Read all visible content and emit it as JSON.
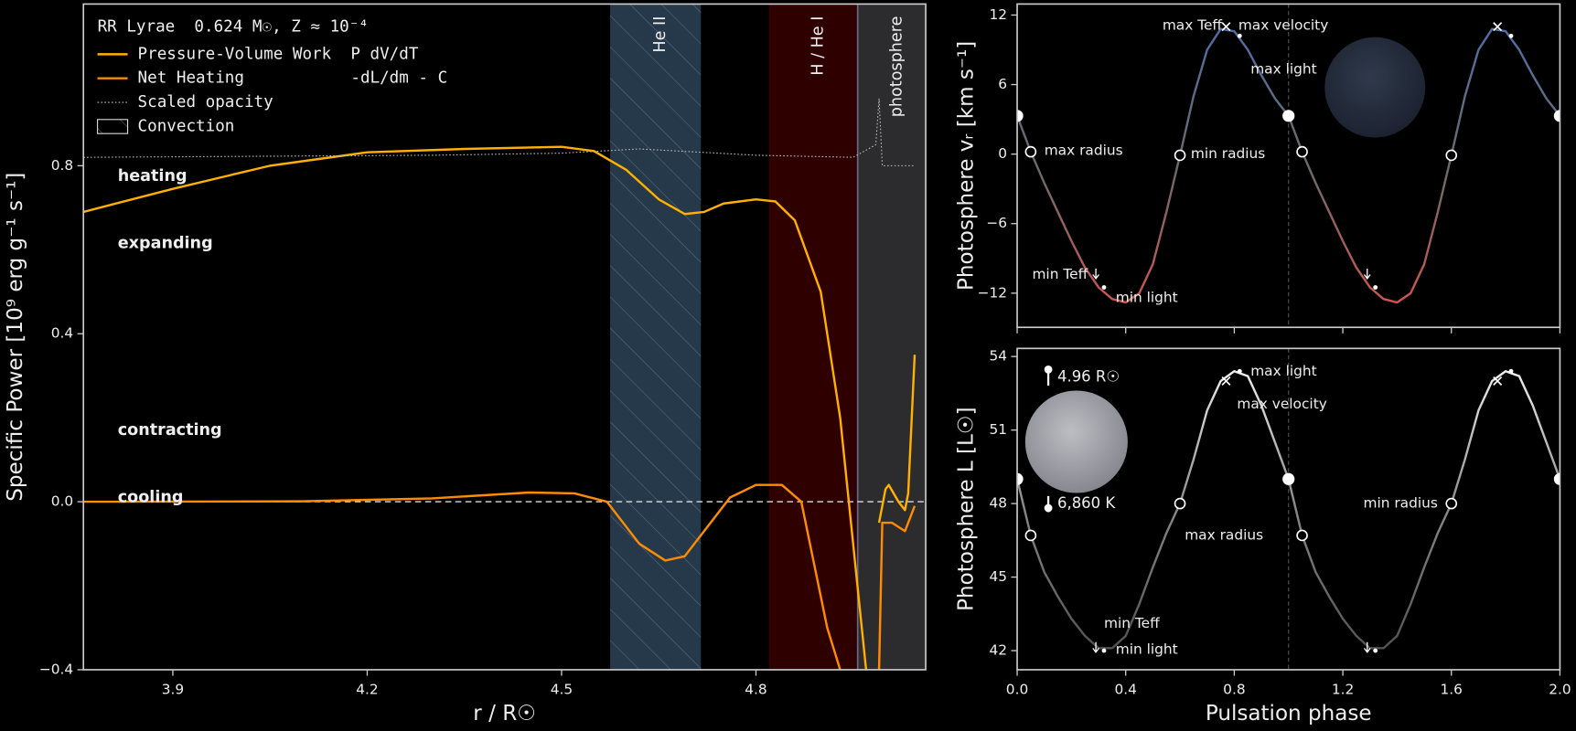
{
  "chart_data": [
    {
      "type": "line",
      "title": "RR Lyrae  0.624 M☉, Z ≈ 10⁻⁴",
      "xlabel": "r / R☉",
      "ylabel": "Specific Power [10⁹ erg g⁻¹ s⁻¹]",
      "xlim": [
        3.762,
        5.062
      ],
      "ylim": [
        -0.4,
        1.185
      ],
      "xticks": [
        3.9,
        4.2,
        4.5,
        4.8
      ],
      "yticks": [
        {
          "value": -0.4,
          "label": "−0.4"
        },
        {
          "value": 0,
          "label": "0.0"
        },
        0.4,
        0.8
      ],
      "hline": 0,
      "legend": "upper left",
      "convection_label": "Convection",
      "regions": [
        {
          "label": "He II",
          "xlim": [
            4.575,
            4.715
          ],
          "color": "#25394a",
          "hatch": true
        },
        {
          "label": "H / He I",
          "xlim": [
            4.82,
            4.957
          ],
          "color": "#2e0000"
        },
        {
          "label": "photosphere",
          "xlim": [
            4.957,
            5.062
          ],
          "color": "#2c2c2f",
          "border": "#6a6a88"
        }
      ],
      "series": [
        {
          "name": "Pressure-Volume Work  P dV/dT",
          "color": "#ffb000",
          "x": [
            3.762,
            3.9,
            4.05,
            4.2,
            4.35,
            4.5,
            4.55,
            4.6,
            4.65,
            4.69,
            4.72,
            4.75,
            4.8,
            4.83,
            4.86,
            4.9,
            4.93,
            4.95,
            4.97,
            4.985,
            4.99,
            5.0,
            5.005,
            5.02,
            5.03,
            5.035,
            5.045
          ],
          "values": [
            0.69,
            0.745,
            0.8,
            0.832,
            0.84,
            0.845,
            0.835,
            0.79,
            0.72,
            0.685,
            0.69,
            0.71,
            0.72,
            0.715,
            0.67,
            0.5,
            0.2,
            -0.1,
            -0.4,
            null,
            -0.05,
            0.03,
            0.04,
            0.0,
            -0.02,
            0.02,
            0.35
          ]
        },
        {
          "name": "Net Heating           -dL/dm - C",
          "color": "#ff8c00",
          "x": [
            3.762,
            4.1,
            4.3,
            4.45,
            4.52,
            4.57,
            4.62,
            4.66,
            4.69,
            4.72,
            4.76,
            4.8,
            4.84,
            4.87,
            4.89,
            4.91,
            4.93,
            4.96,
            4.99,
            4.995,
            5.0,
            5.01,
            5.03,
            5.045
          ],
          "values": [
            0,
            0.001,
            0.008,
            0.022,
            0.02,
            0.0,
            -0.1,
            -0.14,
            -0.13,
            -0.07,
            0.01,
            0.04,
            0.04,
            0.0,
            -0.15,
            -0.3,
            -0.4,
            null,
            -0.4,
            -0.05,
            -0.05,
            -0.05,
            -0.07,
            -0.01
          ]
        },
        {
          "name": "Scaled opacity",
          "color": "#bbbbbb",
          "style": "dotted",
          "x": [
            3.762,
            4.3,
            4.5,
            4.62,
            4.8,
            4.95,
            4.985,
            4.99,
            4.995,
            5.045
          ],
          "values": [
            0.82,
            0.825,
            0.83,
            0.84,
            0.825,
            0.82,
            0.85,
            0.96,
            0.8,
            0.8
          ]
        }
      ],
      "annotations": [
        {
          "text": "heating",
          "x": 3.815,
          "y": 0.775,
          "color": "#555555"
        },
        {
          "text": "expanding",
          "x": 3.815,
          "y": 0.615,
          "color": "#d62728"
        },
        {
          "text": "contracting",
          "x": 3.815,
          "y": 0.17,
          "color": "#555555"
        },
        {
          "text": "cooling",
          "x": 3.815,
          "y": 0.01,
          "color": "#9ecae1"
        }
      ]
    },
    {
      "type": "line",
      "ylabel": "Photosphere vᵣ [km s⁻¹]",
      "xlim": [
        0,
        2
      ],
      "ylim": [
        -14.95,
        12.95
      ],
      "xticks": [
        0,
        0.4,
        0.8,
        1.2,
        1.6,
        2
      ],
      "yticks": [
        {
          "value": -12,
          "label": "−12"
        },
        {
          "value": -6,
          "label": "−6"
        },
        0,
        6,
        12
      ],
      "vline": 1,
      "star_color": "#26303f",
      "series": [
        {
          "colors": [
            "#4c6eb0",
            "#6a6a6a",
            "#e0524a"
          ],
          "x": [
            0,
            0.05,
            0.1,
            0.15,
            0.2,
            0.25,
            0.3,
            0.35,
            0.4,
            0.45,
            0.5,
            0.55,
            0.6,
            0.65,
            0.7,
            0.75,
            0.8,
            0.85,
            0.9,
            0.95,
            1,
            1.05,
            1.1,
            1.15,
            1.2,
            1.25,
            1.3,
            1.35,
            1.4,
            1.45,
            1.5,
            1.55,
            1.6,
            1.65,
            1.7,
            1.75,
            1.8,
            1.85,
            1.9,
            1.95,
            2
          ],
          "values": [
            3.3,
            0.2,
            -2.5,
            -5,
            -7.5,
            -9.8,
            -11.5,
            -12.5,
            -12.8,
            -12,
            -9.5,
            -5,
            -0.1,
            5,
            9,
            10.8,
            10.6,
            9,
            6.8,
            4.8,
            3.3,
            0.2,
            -2.5,
            -5,
            -7.5,
            -9.8,
            -11.5,
            -12.5,
            -12.8,
            -12,
            -9.5,
            -5,
            -0.1,
            5,
            9,
            10.8,
            10.6,
            9,
            6.8,
            4.8,
            3.3
          ]
        }
      ],
      "markers": [
        {
          "x": 0,
          "y": 3.3,
          "shape": "bigdot"
        },
        {
          "x": 1,
          "y": 3.3,
          "shape": "bigdot"
        },
        {
          "x": 2,
          "y": 3.3,
          "shape": "bigdot"
        },
        {
          "x": 0.05,
          "y": 0.2,
          "shape": "circle"
        },
        {
          "x": 0.6,
          "y": -0.1,
          "shape": "circle"
        },
        {
          "x": 1.05,
          "y": 0.2,
          "shape": "circle"
        },
        {
          "x": 1.6,
          "y": -0.1,
          "shape": "circle"
        },
        {
          "x": 0.77,
          "y": 11,
          "shape": "cross"
        },
        {
          "x": 1.77,
          "y": 11,
          "shape": "cross"
        },
        {
          "x": 0.82,
          "y": 10.2,
          "shape": "dot"
        },
        {
          "x": 1.82,
          "y": 10.2,
          "shape": "dot"
        },
        {
          "x": 0.32,
          "y": -11.5,
          "shape": "dot"
        },
        {
          "x": 1.32,
          "y": -11.5,
          "shape": "dot"
        },
        {
          "x": 0.29,
          "y": -10.4,
          "shape": "arrow"
        },
        {
          "x": 1.29,
          "y": -10.4,
          "shape": "arrow"
        }
      ],
      "annotations": [
        {
          "text": "max Teff",
          "x": 0.755,
          "y": 11.1,
          "anchor": "end"
        },
        {
          "text": "max velocity",
          "x": 0.815,
          "y": 11.1
        },
        {
          "text": "max light",
          "x": 0.86,
          "y": 7.3
        },
        {
          "text": "max radius",
          "x": 0.1,
          "y": 0.3
        },
        {
          "text": "min radius",
          "x": 0.64,
          "y": 0
        },
        {
          "text": "min Teff",
          "x": 0.26,
          "y": -10.4,
          "anchor": "end"
        },
        {
          "text": "min light",
          "x": 0.363,
          "y": -12.4
        }
      ]
    },
    {
      "type": "line",
      "xlabel": "Pulsation phase",
      "ylabel": "Photosphere L [L☉]",
      "xlim": [
        0,
        2
      ],
      "ylim": [
        41.22,
        54.33
      ],
      "xticks": [
        {
          "value": 0,
          "label": "0.0"
        },
        0.4,
        0.8,
        1.2,
        1.6,
        {
          "value": 2,
          "label": "2.0"
        }
      ],
      "yticks": [
        42,
        45,
        48,
        51,
        54
      ],
      "vline": 1,
      "star_color": "#a9a9b0",
      "radius_label": "4.96 R☉",
      "teff_label": "6,860 K",
      "series": [
        {
          "colors": [
            "#ffffff",
            "#888888",
            "#4a4a4a"
          ],
          "x": [
            0,
            0.05,
            0.1,
            0.15,
            0.2,
            0.25,
            0.3,
            0.35,
            0.4,
            0.45,
            0.5,
            0.55,
            0.6,
            0.65,
            0.7,
            0.75,
            0.8,
            0.85,
            0.9,
            0.95,
            1,
            1.05,
            1.1,
            1.15,
            1.2,
            1.25,
            1.3,
            1.35,
            1.4,
            1.45,
            1.5,
            1.55,
            1.6,
            1.65,
            1.7,
            1.75,
            1.8,
            1.85,
            1.9,
            1.95,
            2
          ],
          "values": [
            49,
            46.7,
            45.2,
            44.2,
            43.3,
            42.6,
            42.1,
            42.1,
            42.6,
            43.9,
            45.4,
            46.8,
            48,
            49.8,
            51.8,
            53,
            53.4,
            53.2,
            52,
            50.5,
            49,
            46.7,
            45.2,
            44.2,
            43.3,
            42.6,
            42.1,
            42.1,
            42.6,
            43.9,
            45.4,
            46.8,
            48,
            49.8,
            51.8,
            53,
            53.4,
            53.2,
            52,
            50.5,
            49
          ]
        }
      ],
      "markers": [
        {
          "x": 0,
          "y": 49,
          "shape": "bigdot"
        },
        {
          "x": 1,
          "y": 49,
          "shape": "bigdot"
        },
        {
          "x": 2,
          "y": 49,
          "shape": "bigdot"
        },
        {
          "x": 0.05,
          "y": 46.7,
          "shape": "circle"
        },
        {
          "x": 0.6,
          "y": 48,
          "shape": "circle"
        },
        {
          "x": 1.05,
          "y": 46.7,
          "shape": "circle"
        },
        {
          "x": 1.6,
          "y": 48,
          "shape": "circle"
        },
        {
          "x": 0.77,
          "y": 53,
          "shape": "cross"
        },
        {
          "x": 1.77,
          "y": 53,
          "shape": "cross"
        },
        {
          "x": 0.82,
          "y": 53.4,
          "shape": "dot"
        },
        {
          "x": 1.82,
          "y": 53.4,
          "shape": "dot"
        },
        {
          "x": 0.32,
          "y": 42,
          "shape": "dot"
        },
        {
          "x": 1.32,
          "y": 42,
          "shape": "dot"
        },
        {
          "x": 0.29,
          "y": 42.1,
          "shape": "arrow"
        },
        {
          "x": 1.29,
          "y": 42.1,
          "shape": "arrow"
        }
      ],
      "annotations": [
        {
          "text": "max light",
          "x": 0.86,
          "y": 53.4
        },
        {
          "text": "max velocity",
          "x": 0.81,
          "y": 52.05
        },
        {
          "text": "min Teff",
          "x": 0.32,
          "y": 43.1
        },
        {
          "text": "min light",
          "x": 0.363,
          "y": 42.04
        },
        {
          "text": "min radius",
          "x": 1.55,
          "y": 48,
          "anchor": "end"
        },
        {
          "text": "max radius",
          "x": 0.907,
          "y": 46.7,
          "anchor": "end"
        }
      ]
    }
  ]
}
